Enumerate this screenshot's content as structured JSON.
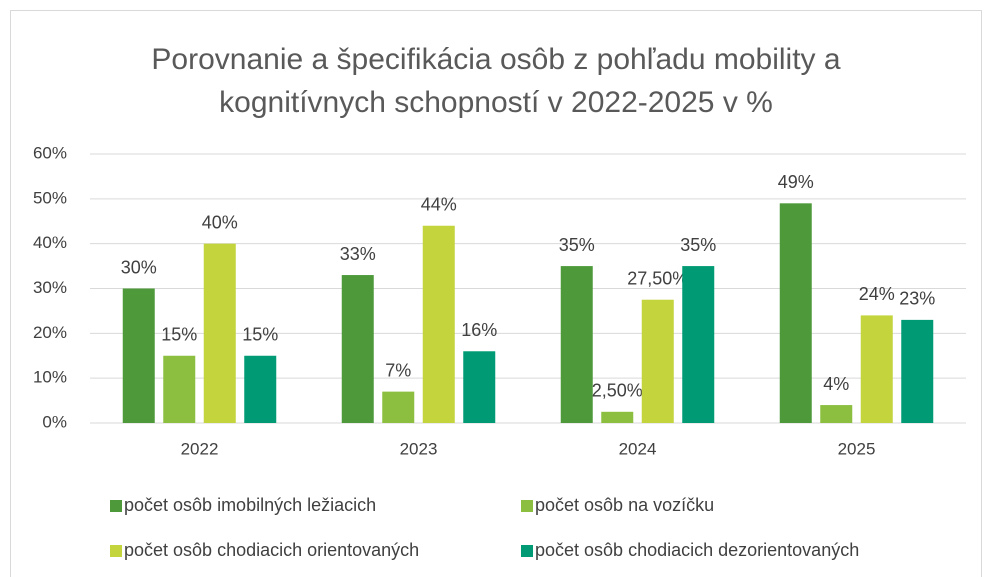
{
  "chart_data": {
    "type": "bar",
    "title": "Porovnanie a špecifikácia osôb z pohľadu mobility a kognitívnych schopností v 2022-2025 v %",
    "categories": [
      "2022",
      "2023",
      "2024",
      "2025"
    ],
    "series": [
      {
        "name": "počet osôb imobilných ležiacich",
        "color": "#4e9a3b",
        "values": [
          30,
          33,
          35,
          49
        ],
        "value_labels": [
          "30%",
          "33%",
          "35%",
          "49%"
        ]
      },
      {
        "name": "počet osôb na vozíčku",
        "color": "#8cbf40",
        "values": [
          15,
          7,
          2.5,
          4
        ],
        "value_labels": [
          "15%",
          "7%",
          "2,50%",
          "4%"
        ]
      },
      {
        "name": "počet osôb chodiacich orientovaných",
        "color": "#c3d43c",
        "values": [
          40,
          44,
          27.5,
          24
        ],
        "value_labels": [
          "40%",
          "44%",
          "27,50%",
          "24%"
        ]
      },
      {
        "name": "počet osôb chodiacich dezorientovaných",
        "color": "#009b74",
        "values": [
          15,
          16,
          35,
          23
        ],
        "value_labels": [
          "15%",
          "16%",
          "35%",
          "23%"
        ]
      }
    ],
    "ylim": [
      0,
      60
    ],
    "yticks": [
      {
        "value": 0,
        "label": "0%"
      },
      {
        "value": 10,
        "label": "10%"
      },
      {
        "value": 20,
        "label": "20%"
      },
      {
        "value": 30,
        "label": "30%"
      },
      {
        "value": 40,
        "label": "40%"
      },
      {
        "value": 50,
        "label": "50%"
      },
      {
        "value": 60,
        "label": "60%"
      }
    ],
    "grid": true,
    "legend": "bottom"
  }
}
